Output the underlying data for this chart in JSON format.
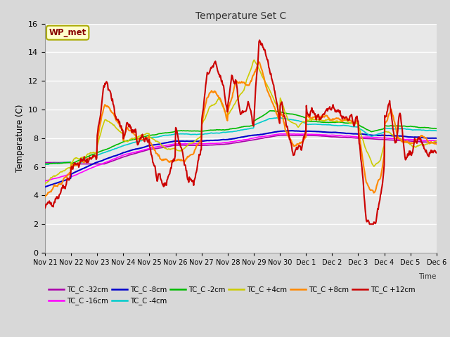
{
  "title": "Temperature Set C",
  "xlabel": "Time",
  "ylabel": "Temperature (C)",
  "ylim": [
    0,
    16
  ],
  "yticks": [
    0,
    2,
    4,
    6,
    8,
    10,
    12,
    14,
    16
  ],
  "x_labels": [
    "Nov 21",
    "Nov 22",
    "Nov 23",
    "Nov 24",
    "Nov 25",
    "Nov 26",
    "Nov 27",
    "Nov 28",
    "Nov 29",
    "Nov 30",
    "Dec 1",
    "Dec 2",
    "Dec 3",
    "Dec 4",
    "Dec 5",
    "Dec 6"
  ],
  "background_color": "#d8d8d8",
  "plot_bg_color": "#e8e8e8",
  "grid_color": "#ffffff",
  "annotation_text": "WP_met",
  "annotation_bg": "#ffffcc",
  "annotation_border": "#aaaa00",
  "annotation_text_color": "#880000",
  "series": {
    "TC_C -32cm": {
      "color": "#aa00aa",
      "lw": 1.2
    },
    "TC_C -16cm": {
      "color": "#ff00ff",
      "lw": 1.2
    },
    "TC_C -8cm": {
      "color": "#0000cc",
      "lw": 1.5
    },
    "TC_C -4cm": {
      "color": "#00cccc",
      "lw": 1.2
    },
    "TC_C -2cm": {
      "color": "#00bb00",
      "lw": 1.2
    },
    "TC_C +4cm": {
      "color": "#cccc00",
      "lw": 1.2
    },
    "TC_C +8cm": {
      "color": "#ff8800",
      "lw": 1.5
    },
    "TC_C +12cm": {
      "color": "#cc0000",
      "lw": 1.5
    }
  },
  "legend_order": [
    "TC_C -32cm",
    "TC_C -16cm",
    "TC_C -8cm",
    "TC_C -4cm",
    "TC_C -2cm",
    "TC_C +4cm",
    "TC_C +8cm",
    "TC_C +12cm"
  ]
}
